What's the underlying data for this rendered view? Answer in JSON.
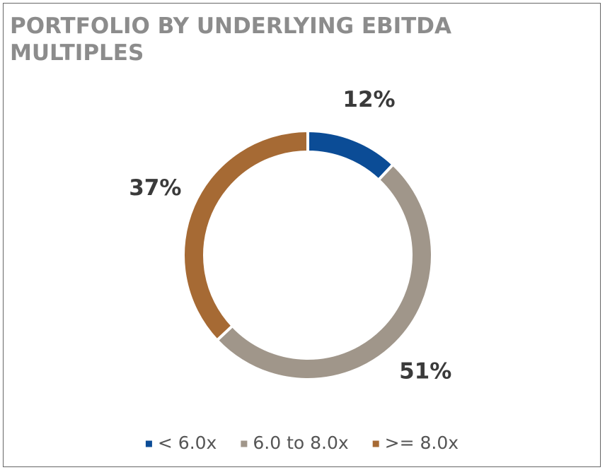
{
  "chart_data": {
    "type": "donut",
    "title": "PORTFOLIO BY UNDERLYING EBITDA MULTIPLES",
    "categories": [
      "< 6.0x",
      "6.0 to 8.0x",
      ">= 8.0x"
    ],
    "values": [
      12,
      51,
      37
    ],
    "value_labels": [
      "12%",
      "51%",
      "37%"
    ],
    "colors": [
      "#0b4c96",
      "#a0968a",
      "#a66a34"
    ],
    "legend": "bottom"
  }
}
